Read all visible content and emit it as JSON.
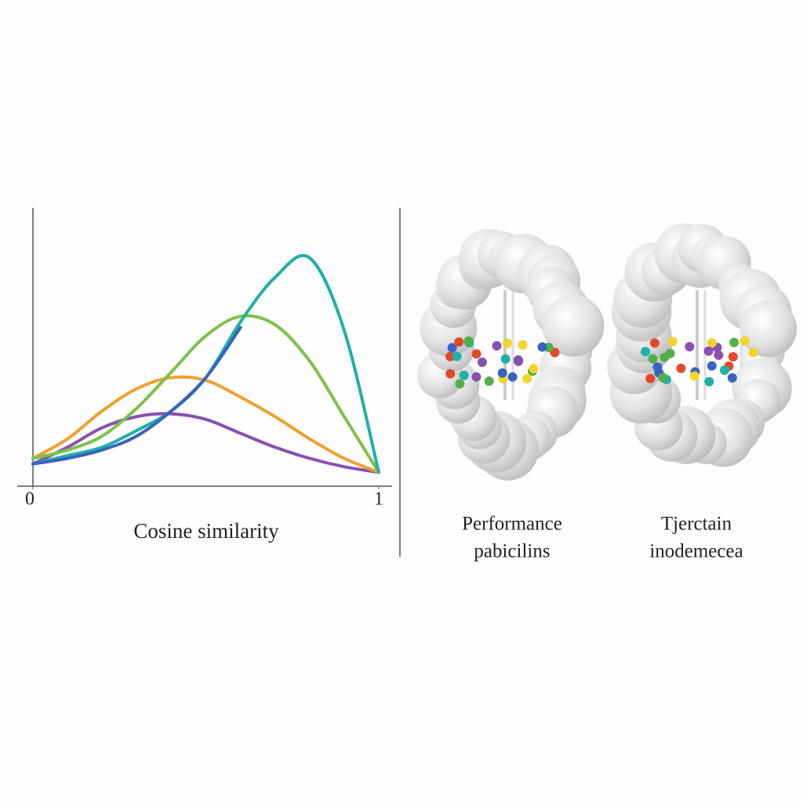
{
  "chart_data": {
    "type": "line",
    "x_label": "Cosine similarity",
    "x": [
      0,
      0.1,
      0.2,
      0.3,
      0.4,
      0.5,
      0.6,
      0.7,
      0.8,
      0.9,
      1
    ],
    "xlim": [
      0,
      1
    ],
    "xticks": [
      0,
      1
    ],
    "ylim": [
      0,
      1
    ],
    "series": [
      {
        "color": "#8a4fb0",
        "values": [
          0.08,
          0.14,
          0.21,
          0.25,
          0.26,
          0.24,
          0.19,
          0.14,
          0.1,
          0.07,
          0.05
        ]
      },
      {
        "color": "#f0a030",
        "values": [
          0.1,
          0.17,
          0.27,
          0.35,
          0.39,
          0.38,
          0.32,
          0.25,
          0.17,
          0.1,
          0.05
        ]
      },
      {
        "color": "#7dc24a",
        "values": [
          0.1,
          0.13,
          0.18,
          0.28,
          0.41,
          0.54,
          0.61,
          0.58,
          0.45,
          0.25,
          0.05
        ]
      },
      {
        "color": "#1fb0a8",
        "values": [
          0.08,
          0.11,
          0.14,
          0.2,
          0.27,
          0.39,
          0.59,
          0.75,
          0.82,
          0.56,
          0.05
        ]
      },
      {
        "color": "#3a62c0",
        "values": [
          0.08,
          0.1,
          0.13,
          0.18,
          0.27,
          0.39,
          0.57,
          null,
          null,
          null,
          null
        ]
      }
    ]
  },
  "panels": [
    {
      "caption": [
        "Performance",
        "pabicilins"
      ]
    },
    {
      "caption": [
        "Tjerctain",
        "inodemecea"
      ]
    }
  ]
}
